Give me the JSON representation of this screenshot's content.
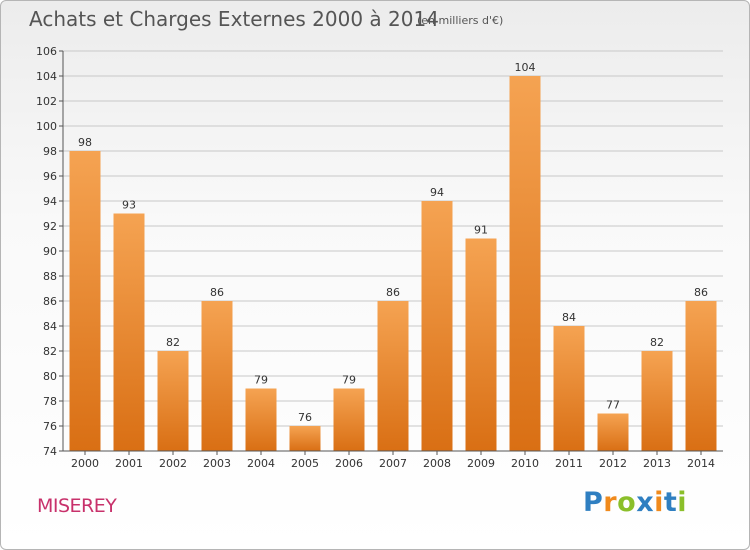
{
  "title": "Achats et Charges Externes 2000 à 2014",
  "unit": "(en milliers d'€)",
  "commune": "MISEREY",
  "logo": {
    "text": "Proxiti",
    "letters": [
      {
        "ch": "P",
        "color": "#2f7fc1"
      },
      {
        "ch": "r",
        "color": "#f08a1c"
      },
      {
        "ch": "o",
        "color": "#8bbf2a"
      },
      {
        "ch": "x",
        "color": "#2f7fc1"
      },
      {
        "ch": "i",
        "color": "#f08a1c"
      },
      {
        "ch": "t",
        "color": "#2f7fc1"
      },
      {
        "ch": "i",
        "color": "#8bbf2a"
      }
    ]
  },
  "colors": {
    "bar_top": "#f5a352",
    "bar_bottom": "#d96f14",
    "axis": "#555555",
    "grid": "#c8c8c8",
    "text": "#333333"
  },
  "chart_data": {
    "type": "bar",
    "title": "Achats et Charges Externes 2000 à 2014",
    "categories": [
      "2000",
      "2001",
      "2002",
      "2003",
      "2004",
      "2005",
      "2006",
      "2007",
      "2008",
      "2009",
      "2010",
      "2011",
      "2012",
      "2013",
      "2014"
    ],
    "values": [
      98,
      93,
      82,
      86,
      79,
      76,
      79,
      86,
      94,
      91,
      104,
      84,
      77,
      82,
      86
    ],
    "ylim": [
      74,
      106
    ],
    "yticks": [
      74,
      76,
      78,
      80,
      82,
      84,
      86,
      88,
      90,
      92,
      94,
      96,
      98,
      100,
      102,
      104,
      106
    ],
    "grid": true
  }
}
